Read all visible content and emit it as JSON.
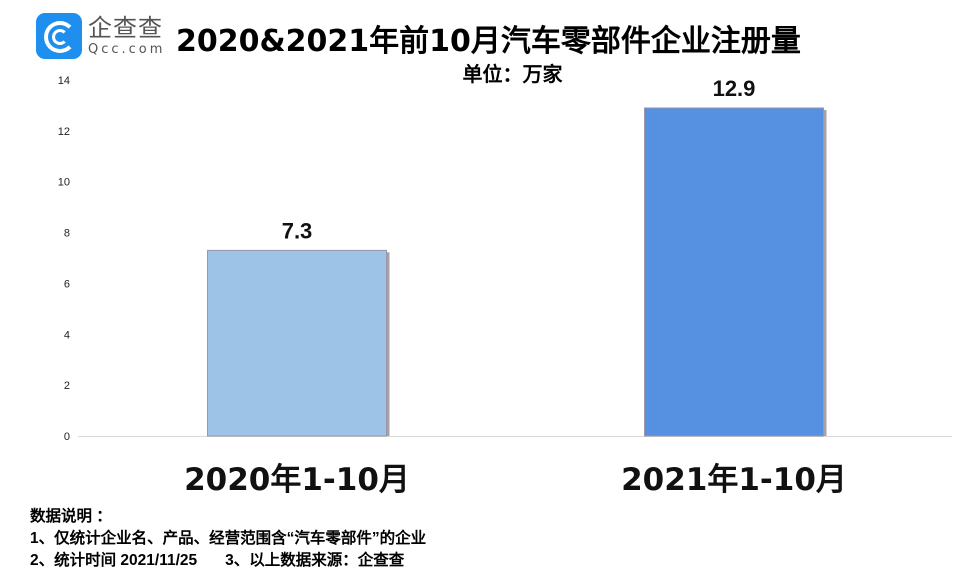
{
  "logo": {
    "cn": "企查查",
    "en": "Qcc.com"
  },
  "title": "2020&2021年前10月汽车零部件企业注册量",
  "subtitle": "单位：万家",
  "notes": {
    "heading": "数据说明 ：",
    "line1": "1、仅统计企业名、产品、经营范围含“汽车零部件”的企业",
    "line2a": "2、统计时间 2021/11/25",
    "line2b": "3、以上数据来源：企查查"
  },
  "colors": {
    "bar_2020": "#9dc3e6",
    "bar_2021": "#5690e0"
  },
  "chart_data": {
    "type": "bar",
    "title": "2020&2021年前10月汽车零部件企业注册量",
    "subtitle": "单位：万家",
    "categories": [
      "2020年1-10月",
      "2021年1-10月"
    ],
    "values": [
      7.3,
      12.9
    ],
    "data_labels": [
      "7.3",
      "12.9"
    ],
    "ylim": [
      0,
      14
    ],
    "yticks": [
      0,
      2,
      4,
      6,
      8,
      10,
      12,
      14
    ],
    "grid": false,
    "legend": "none"
  }
}
